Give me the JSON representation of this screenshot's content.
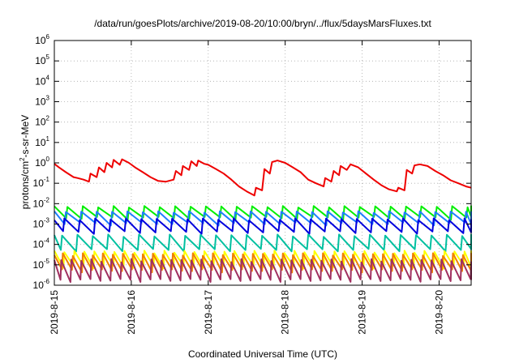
{
  "chart_data": {
    "type": "line",
    "title": "/data/run/goesPlots/archive/2019-08-20/10:00/bryn/../flux/5daysMarsFluxes.txt",
    "xlabel": "Coordinated Universal Time (UTC)",
    "ylabel": "protons/cm2-s-sr-MeV",
    "ylabel_parts": {
      "before": "protons/cm",
      "sup": "2",
      "after": "-s-sr-MeV"
    },
    "y_scale": "log",
    "ylim": [
      1e-06,
      1000000
    ],
    "y_ticks": [
      {
        "base": "10",
        "exp": "-6"
      },
      {
        "base": "10",
        "exp": "-5"
      },
      {
        "base": "10",
        "exp": "-4"
      },
      {
        "base": "10",
        "exp": "-3"
      },
      {
        "base": "10",
        "exp": "-2"
      },
      {
        "base": "10",
        "exp": "-1"
      },
      {
        "base": "10",
        "exp": "0"
      },
      {
        "base": "10",
        "exp": "1"
      },
      {
        "base": "10",
        "exp": "2"
      },
      {
        "base": "10",
        "exp": "3"
      },
      {
        "base": "10",
        "exp": "4"
      },
      {
        "base": "10",
        "exp": "5"
      },
      {
        "base": "10",
        "exp": "6"
      }
    ],
    "xlim": [
      "2019-08-15",
      "2019-08-20 10:00"
    ],
    "x_ticks": [
      "2019-8-15",
      "2019-8-16",
      "2019-8-17",
      "2019-8-18",
      "2019-8-19",
      "2019-8-20"
    ],
    "grid": true,
    "series": [
      {
        "color": "#ee0000",
        "x": [
          0,
          0.06,
          0.15,
          0.25,
          0.3,
          0.38,
          0.45,
          0.47,
          0.55,
          0.58,
          0.65,
          0.68,
          0.75,
          0.77,
          0.85,
          0.88,
          0.97,
          1.05,
          1.15,
          1.25,
          1.35,
          1.45,
          1.55,
          1.58,
          1.65,
          1.67,
          1.75,
          1.78,
          1.85,
          1.87,
          1.95,
          2.0,
          2.1,
          2.2,
          2.3,
          2.4,
          2.5,
          2.6,
          2.62,
          2.7,
          2.73,
          2.8,
          2.83,
          2.9,
          3.0,
          3.1,
          3.2,
          3.3,
          3.4,
          3.5,
          3.52,
          3.6,
          3.63,
          3.7,
          3.72,
          3.8,
          3.85,
          3.95,
          4.05,
          4.15,
          4.25,
          4.35,
          4.45,
          4.47,
          4.55,
          4.58,
          4.65,
          4.68,
          4.75,
          4.85,
          4.95,
          5.05,
          5.15,
          5.25,
          5.35,
          5.42
        ],
        "y": [
          0.9,
          0.6,
          0.35,
          0.2,
          0.18,
          0.15,
          0.12,
          0.3,
          0.2,
          0.6,
          0.35,
          1.0,
          0.6,
          1.4,
          0.8,
          1.5,
          1.0,
          0.6,
          0.35,
          0.2,
          0.13,
          0.12,
          0.15,
          0.4,
          0.25,
          0.7,
          0.45,
          1.2,
          0.7,
          1.3,
          0.9,
          0.8,
          0.5,
          0.3,
          0.15,
          0.07,
          0.04,
          0.025,
          0.06,
          0.045,
          0.5,
          0.3,
          1.1,
          1.3,
          1.0,
          0.6,
          0.35,
          0.15,
          0.1,
          0.07,
          0.18,
          0.12,
          0.4,
          0.25,
          0.7,
          0.45,
          0.85,
          0.6,
          0.3,
          0.15,
          0.08,
          0.05,
          0.04,
          0.06,
          0.045,
          0.45,
          0.3,
          0.75,
          0.85,
          0.7,
          0.4,
          0.25,
          0.14,
          0.1,
          0.07,
          0.06
        ]
      },
      {
        "color": "#00ee00",
        "base": 0.0045,
        "amp": 0.0025,
        "period": 0.2,
        "phase": 0.03
      },
      {
        "color": "#1f7fff",
        "base": 0.0024,
        "amp": 0.0015,
        "period": 0.2,
        "phase": 0.05
      },
      {
        "color": "#0000dd",
        "base": 0.0009,
        "amp": 0.0008,
        "period": 0.2,
        "phase": 0.07
      },
      {
        "color": "#00c0a0",
        "base": 0.00012,
        "amp": 0.00015,
        "period": 0.2,
        "phase": 0.1
      },
      {
        "color": "#ffff00",
        "base": 1.8e-05,
        "amp": 2.5e-05,
        "period": 0.13,
        "phase": 0.0
      },
      {
        "color": "#f08000",
        "base": 1.2e-05,
        "amp": 2e-05,
        "period": 0.13,
        "phase": 0.02
      },
      {
        "color": "#a03060",
        "base": 4e-06,
        "amp": 1.2e-05,
        "period": 0.13,
        "phase": 0.04
      }
    ]
  }
}
